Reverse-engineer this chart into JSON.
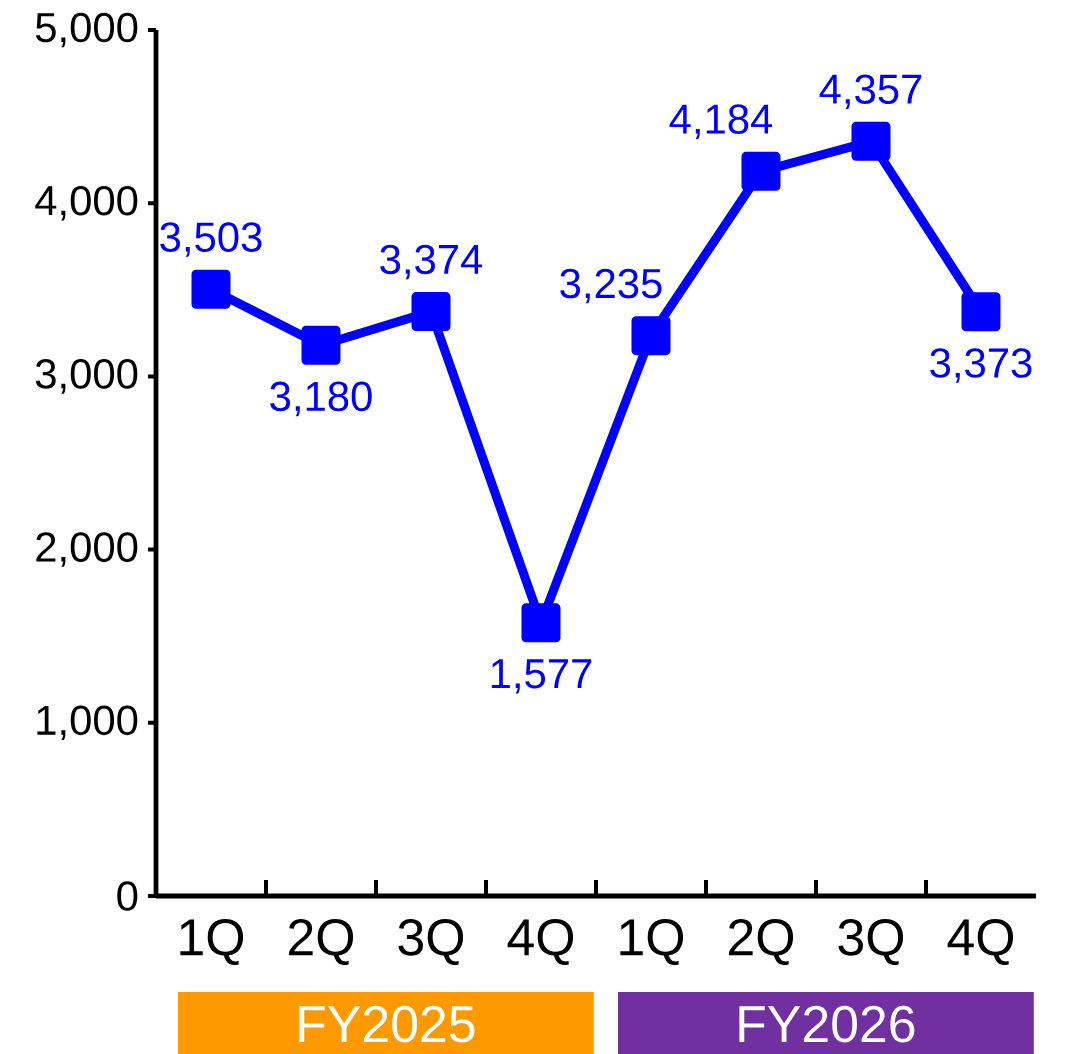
{
  "chart_data": {
    "type": "line",
    "categories": [
      "1Q",
      "2Q",
      "3Q",
      "4Q",
      "1Q",
      "2Q",
      "3Q",
      "4Q"
    ],
    "series": [
      {
        "color": "#0000ff",
        "values": [
          3503,
          3180,
          3374,
          1577,
          3235,
          4184,
          4357,
          3373
        ],
        "value_labels": [
          "3,503",
          "3,180",
          "3,374",
          "1,577",
          "3,235",
          "4,184",
          "4,357",
          "3,373"
        ]
      }
    ],
    "ylim": [
      0,
      5000
    ],
    "yticks": [
      {
        "value": 0,
        "label": "0"
      },
      {
        "value": 1000,
        "label": "1,000"
      },
      {
        "value": 2000,
        "label": "2,000"
      },
      {
        "value": 3000,
        "label": "3,000"
      },
      {
        "value": 4000,
        "label": "4,000"
      },
      {
        "value": 5000,
        "label": "5,000"
      }
    ],
    "marker": "square",
    "annotations": [
      "FY2025",
      "FY2026"
    ]
  }
}
